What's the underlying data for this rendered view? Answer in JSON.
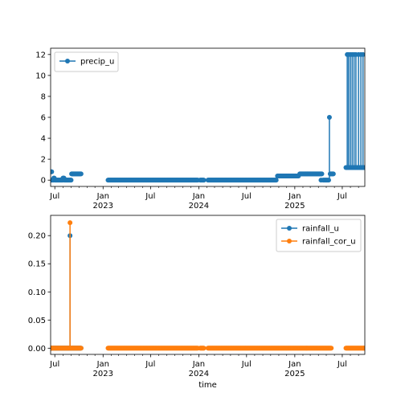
{
  "colors": {
    "blue": "#1f77b4",
    "orange": "#ff7f0e",
    "legend_border": "#cccccc"
  },
  "chart_data": [
    {
      "type": "line",
      "marker": "circle",
      "legend": {
        "placement": "upper-left",
        "entries": [
          "precip_u"
        ]
      },
      "xlabel": "",
      "ylabel": "",
      "xlim": [
        "2022-06-15",
        "2025-09-25"
      ],
      "ylim": [
        -0.6,
        12.6
      ],
      "yticks": [
        0,
        2,
        4,
        6,
        8,
        10,
        12
      ],
      "ytick_labels": [
        "0",
        "2",
        "4",
        "6",
        "8",
        "10",
        "12"
      ],
      "xticks": [
        {
          "date": "2022-07-01",
          "label": "Jul"
        },
        {
          "date": "2023-01-01",
          "label": "Jan\n2023"
        },
        {
          "date": "2023-07-01",
          "label": "Jul"
        },
        {
          "date": "2024-01-01",
          "label": "Jan\n2024"
        },
        {
          "date": "2024-07-01",
          "label": "Jul"
        },
        {
          "date": "2025-01-01",
          "label": "Jan\n2025"
        },
        {
          "date": "2025-07-01",
          "label": "Jul"
        }
      ],
      "series": [
        {
          "name": "precip_u",
          "color": "#1f77b4",
          "segments": [
            {
              "start": "2022-06-15",
              "end": "2022-06-19",
              "value": 0.8
            },
            {
              "start": "2022-06-20",
              "end": "2022-06-26",
              "value": 0.0
            },
            {
              "start": "2022-06-27",
              "end": "2022-06-30",
              "value": 0.2
            },
            {
              "start": "2022-07-01",
              "end": "2022-07-31",
              "value": 0.0
            },
            {
              "start": "2022-08-01",
              "end": "2022-08-05",
              "value": 0.2
            },
            {
              "start": "2022-08-06",
              "end": "2022-09-02",
              "value": 0.0
            },
            {
              "start": "2022-09-03",
              "end": "2022-10-10",
              "value": 0.6
            },
            {
              "start": "2023-01-20",
              "end": "2023-12-28",
              "value": 0.0
            },
            {
              "start": "2024-01-06",
              "end": "2024-01-20",
              "value": 0.0
            },
            {
              "start": "2024-02-05",
              "end": "2024-10-22",
              "value": 0.0
            },
            {
              "start": "2024-10-27",
              "end": "2025-01-15",
              "value": 0.4
            },
            {
              "start": "2025-01-20",
              "end": "2025-04-15",
              "value": 0.6
            },
            {
              "start": "2025-05-16",
              "end": "2025-05-28",
              "value": 0.6
            },
            {
              "start": "2025-07-15",
              "end": "2025-09-25",
              "value": 1.2
            }
          ],
          "points": [
            {
              "x": "2025-04-11",
              "y": 0.0
            },
            {
              "x": "2025-04-19",
              "y": 0.0
            },
            {
              "x": "2025-04-22",
              "y": 0.0
            },
            {
              "x": "2025-04-25",
              "y": 0.0
            },
            {
              "x": "2025-04-28",
              "y": 0.0
            },
            {
              "x": "2025-05-01",
              "y": 0.0
            },
            {
              "x": "2025-05-04",
              "y": 0.0
            },
            {
              "x": "2025-05-07",
              "y": 0.0
            },
            {
              "x": "2025-05-10",
              "y": 0.0
            }
          ],
          "spikes": [
            {
              "x": "2025-05-13",
              "value": 6.0,
              "base": 0.0
            },
            {
              "x": "2025-07-20",
              "value": 12.0,
              "base": 1.2
            },
            {
              "x": "2025-07-25",
              "value": 12.0,
              "base": 1.2
            },
            {
              "x": "2025-08-01",
              "value": 12.0,
              "base": 1.2
            },
            {
              "x": "2025-08-08",
              "value": 12.0,
              "base": 1.2
            },
            {
              "x": "2025-08-15",
              "value": 12.0,
              "base": 1.2
            },
            {
              "x": "2025-08-22",
              "value": 12.0,
              "base": 1.2
            },
            {
              "x": "2025-09-01",
              "value": 12.0,
              "base": 1.2
            },
            {
              "x": "2025-09-10",
              "value": 12.0,
              "base": 1.2
            },
            {
              "x": "2025-09-18",
              "value": 12.0,
              "base": 1.2
            }
          ]
        }
      ]
    },
    {
      "type": "line",
      "marker": "circle",
      "legend": {
        "placement": "upper-right",
        "entries": [
          "rainfall_u",
          "rainfall_cor_u"
        ]
      },
      "xlabel": "time",
      "ylabel": "",
      "xlim": [
        "2022-06-15",
        "2025-09-25"
      ],
      "ylim": [
        -0.011,
        0.236
      ],
      "yticks": [
        0,
        0.05,
        0.1,
        0.15,
        0.2
      ],
      "ytick_labels": [
        "0.00",
        "0.05",
        "0.10",
        "0.15",
        "0.20"
      ],
      "xticks": [
        {
          "date": "2022-07-01",
          "label": "Jul"
        },
        {
          "date": "2023-01-01",
          "label": "Jan\n2023"
        },
        {
          "date": "2023-07-01",
          "label": "Jul"
        },
        {
          "date": "2024-01-01",
          "label": "Jan\n2024"
        },
        {
          "date": "2024-07-01",
          "label": "Jul"
        },
        {
          "date": "2025-01-01",
          "label": "Jan\n2025"
        },
        {
          "date": "2025-07-01",
          "label": "Jul"
        }
      ],
      "series": [
        {
          "name": "rainfall_u",
          "color": "#1f77b4",
          "segments": [
            {
              "start": "2022-06-15",
              "end": "2022-10-10",
              "value": 0.0
            }
          ],
          "spikes": [
            {
              "x": "2022-08-28",
              "value": 0.2,
              "base": 0.0
            }
          ]
        },
        {
          "name": "rainfall_cor_u",
          "color": "#ff7f0e",
          "segments": [
            {
              "start": "2022-06-15",
              "end": "2022-10-10",
              "value": 0.0
            },
            {
              "start": "2023-01-20",
              "end": "2023-12-28",
              "value": 0.0
            },
            {
              "start": "2024-01-06",
              "end": "2024-01-20",
              "value": 0.0
            },
            {
              "start": "2024-02-05",
              "end": "2025-05-20",
              "value": 0.0
            },
            {
              "start": "2025-07-15",
              "end": "2025-09-25",
              "value": 0.0
            }
          ],
          "spikes": [
            {
              "x": "2022-08-28",
              "value": 0.223,
              "base": 0.0
            }
          ]
        }
      ]
    }
  ]
}
